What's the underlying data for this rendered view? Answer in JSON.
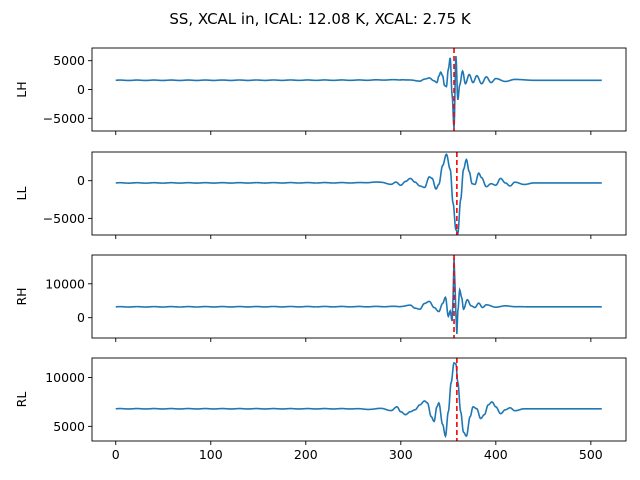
{
  "chart_data": {
    "type": "line",
    "title": "SS, XCAL in, ICAL: 12.08 K, XCAL: 2.75 K",
    "shared_x": true,
    "xlim": [
      -25,
      537
    ],
    "x_ticks": [
      0,
      100,
      200,
      300,
      400,
      500
    ],
    "x_tick_labels": [
      "0",
      "100",
      "200",
      "300",
      "400",
      "500"
    ],
    "n_samples": 512,
    "line_color": "#1f77b4",
    "marker_color": "#ff0000",
    "panels": [
      {
        "ylabel": "LH",
        "ylim": [
          -7200,
          7200
        ],
        "y_ticks": [
          -5000,
          0,
          5000
        ],
        "y_tick_labels": [
          "−5000",
          "0",
          "5000"
        ],
        "baseline": 1600,
        "peak_index": 356,
        "marker_x": 356,
        "points": [
          [
            0,
            1600
          ],
          [
            250,
            1620
          ],
          [
            300,
            1680
          ],
          [
            310,
            1650
          ],
          [
            320,
            1450
          ],
          [
            325,
            1800
          ],
          [
            330,
            2000
          ],
          [
            335,
            1500
          ],
          [
            338,
            1200
          ],
          [
            340,
            2300
          ],
          [
            342,
            3000
          ],
          [
            344,
            2400
          ],
          [
            346,
            700
          ],
          [
            348,
            500
          ],
          [
            350,
            3500
          ],
          [
            352,
            5500
          ],
          [
            354,
            -1000
          ],
          [
            356,
            -6700
          ],
          [
            358,
            5800
          ],
          [
            360,
            -1800
          ],
          [
            362,
            800
          ],
          [
            365,
            3200
          ],
          [
            368,
            1000
          ],
          [
            372,
            2600
          ],
          [
            376,
            1200
          ],
          [
            380,
            2400
          ],
          [
            385,
            1000
          ],
          [
            390,
            2200
          ],
          [
            395,
            1200
          ],
          [
            400,
            1900
          ],
          [
            410,
            1400
          ],
          [
            420,
            1750
          ],
          [
            440,
            1600
          ],
          [
            511,
            1600
          ]
        ]
      },
      {
        "ylabel": "LL",
        "ylim": [
          -7200,
          3800
        ],
        "y_ticks": [
          -5000,
          0
        ],
        "y_tick_labels": [
          "−5000",
          "0"
        ],
        "baseline": -300,
        "peak_index": 358,
        "marker_x": 359,
        "points": [
          [
            0,
            -300
          ],
          [
            250,
            -280
          ],
          [
            280,
            -200
          ],
          [
            290,
            -500
          ],
          [
            295,
            -200
          ],
          [
            300,
            -600
          ],
          [
            305,
            -100
          ],
          [
            310,
            300
          ],
          [
            315,
            -200
          ],
          [
            320,
            -700
          ],
          [
            325,
            -900
          ],
          [
            330,
            500
          ],
          [
            333,
            300
          ],
          [
            337,
            -1100
          ],
          [
            340,
            -500
          ],
          [
            344,
            2000
          ],
          [
            348,
            3500
          ],
          [
            352,
            1500
          ],
          [
            355,
            -3000
          ],
          [
            358,
            -6500
          ],
          [
            360,
            -7000
          ],
          [
            363,
            -2500
          ],
          [
            366,
            1500
          ],
          [
            369,
            2800
          ],
          [
            372,
            1200
          ],
          [
            375,
            -400
          ],
          [
            378,
            -500
          ],
          [
            382,
            1000
          ],
          [
            385,
            400
          ],
          [
            390,
            -800
          ],
          [
            395,
            -400
          ],
          [
            400,
            -600
          ],
          [
            405,
            300
          ],
          [
            410,
            -300
          ],
          [
            415,
            -700
          ],
          [
            420,
            -200
          ],
          [
            430,
            -500
          ],
          [
            440,
            -300
          ],
          [
            511,
            -300
          ]
        ]
      },
      {
        "ylabel": "RH",
        "ylim": [
          -6000,
          18500
        ],
        "y_ticks": [
          0,
          10000
        ],
        "y_tick_labels": [
          "0",
          "10000"
        ],
        "baseline": 3200,
        "peak_index": 356,
        "marker_x": 356,
        "points": [
          [
            0,
            3200
          ],
          [
            250,
            3250
          ],
          [
            300,
            3300
          ],
          [
            310,
            3700
          ],
          [
            315,
            2800
          ],
          [
            320,
            2500
          ],
          [
            325,
            4200
          ],
          [
            330,
            4800
          ],
          [
            335,
            3000
          ],
          [
            340,
            1800
          ],
          [
            344,
            4200
          ],
          [
            347,
            6000
          ],
          [
            350,
            400
          ],
          [
            352,
            2000
          ],
          [
            354,
            -1000
          ],
          [
            355,
            6000
          ],
          [
            356,
            17600
          ],
          [
            357,
            10000
          ],
          [
            358,
            1000
          ],
          [
            359,
            -4800
          ],
          [
            360,
            2000
          ],
          [
            362,
            8200
          ],
          [
            364,
            6000
          ],
          [
            366,
            2500
          ],
          [
            370,
            5300
          ],
          [
            374,
            3500
          ],
          [
            378,
            3000
          ],
          [
            382,
            4300
          ],
          [
            386,
            3000
          ],
          [
            390,
            3800
          ],
          [
            400,
            3100
          ],
          [
            410,
            3500
          ],
          [
            420,
            3250
          ],
          [
            440,
            3200
          ],
          [
            511,
            3200
          ]
        ]
      },
      {
        "ylabel": "RL",
        "ylim": [
          3500,
          12000
        ],
        "y_ticks": [
          5000,
          10000
        ],
        "y_tick_labels": [
          "5000",
          "10000"
        ],
        "baseline": 6800,
        "peak_index": 358,
        "marker_x": 359,
        "points": [
          [
            0,
            6800
          ],
          [
            250,
            6800
          ],
          [
            270,
            6750
          ],
          [
            280,
            6850
          ],
          [
            290,
            6600
          ],
          [
            296,
            7000
          ],
          [
            300,
            6500
          ],
          [
            305,
            6200
          ],
          [
            310,
            6500
          ],
          [
            315,
            6700
          ],
          [
            320,
            7200
          ],
          [
            325,
            7600
          ],
          [
            328,
            7400
          ],
          [
            332,
            6000
          ],
          [
            335,
            5500
          ],
          [
            338,
            7000
          ],
          [
            340,
            7400
          ],
          [
            344,
            5200
          ],
          [
            347,
            4000
          ],
          [
            350,
            6500
          ],
          [
            353,
            9500
          ],
          [
            356,
            11500
          ],
          [
            358,
            11400
          ],
          [
            360,
            9500
          ],
          [
            363,
            6500
          ],
          [
            366,
            4400
          ],
          [
            369,
            4000
          ],
          [
            373,
            6000
          ],
          [
            376,
            7000
          ],
          [
            380,
            6800
          ],
          [
            384,
            5800
          ],
          [
            388,
            6200
          ],
          [
            392,
            7200
          ],
          [
            396,
            7500
          ],
          [
            400,
            7000
          ],
          [
            405,
            6300
          ],
          [
            410,
            6700
          ],
          [
            415,
            6900
          ],
          [
            420,
            6600
          ],
          [
            430,
            6800
          ],
          [
            511,
            6800
          ]
        ]
      }
    ]
  }
}
